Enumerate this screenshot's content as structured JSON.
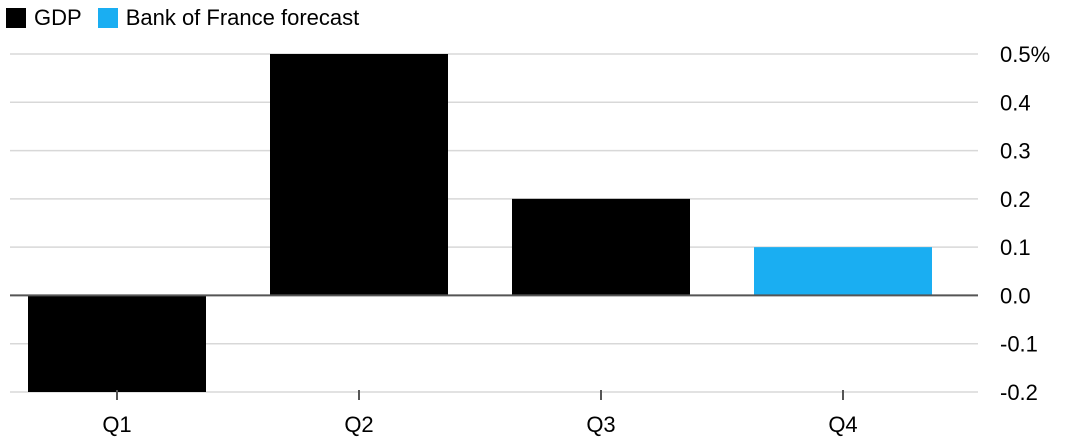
{
  "colors": {
    "gdp": "#000000",
    "forecast": "#1AAEF2",
    "grid": "#d8d8d8",
    "axis": "#555555"
  },
  "legend": [
    {
      "label": "GDP",
      "color": "#000000"
    },
    {
      "label": "Bank of France forecast",
      "color": "#1AAEF2"
    }
  ],
  "chart_data": {
    "type": "bar",
    "categories": [
      "Q1",
      "Q2",
      "Q3",
      "Q4"
    ],
    "values": [
      -0.2,
      0.5,
      0.2,
      0.1
    ],
    "bar_series": [
      "GDP",
      "GDP",
      "GDP",
      "Bank of France forecast"
    ],
    "ylim": [
      -0.2,
      0.5
    ],
    "yticks": [
      0.5,
      0.4,
      0.3,
      0.2,
      0.1,
      0.0,
      -0.1,
      -0.2
    ],
    "ytick_labels": [
      "0.5%",
      "0.4",
      "0.3",
      "0.2",
      "0.1",
      "0.0",
      "-0.1",
      "-0.2"
    ],
    "grid": true,
    "y_axis_position": "right",
    "legend_position": "top-left"
  }
}
